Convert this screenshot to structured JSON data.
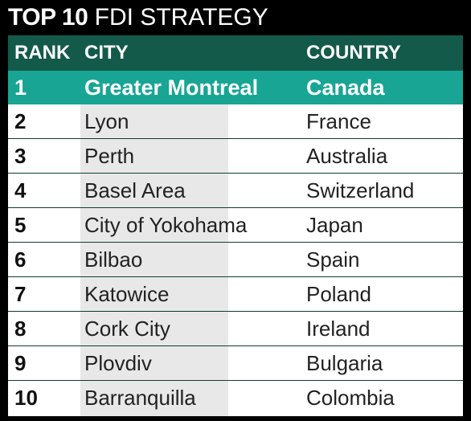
{
  "title": {
    "bold": "TOP 10",
    "light": "FDI STRATEGY"
  },
  "colors": {
    "background": "#000000",
    "header": "#145a4b",
    "highlight": "#19a594",
    "shade": "#e8e8e8"
  },
  "table": {
    "columns": [
      "RANK",
      "CITY",
      "COUNTRY"
    ],
    "rows": [
      {
        "rank": "1",
        "city": "Greater Montreal",
        "country": "Canada"
      },
      {
        "rank": "2",
        "city": "Lyon",
        "country": "France"
      },
      {
        "rank": "3",
        "city": "Perth",
        "country": "Australia"
      },
      {
        "rank": "4",
        "city": "Basel Area",
        "country": "Switzerland"
      },
      {
        "rank": "5",
        "city": "City of Yokohama",
        "country": "Japan"
      },
      {
        "rank": "6",
        "city": "Bilbao",
        "country": "Spain"
      },
      {
        "rank": "7",
        "city": "Katowice",
        "country": "Poland"
      },
      {
        "rank": "8",
        "city": "Cork City",
        "country": "Ireland"
      },
      {
        "rank": "9",
        "city": "Plovdiv",
        "country": "Bulgaria"
      },
      {
        "rank": "10",
        "city": "Barranquilla",
        "country": "Colombia"
      }
    ]
  }
}
